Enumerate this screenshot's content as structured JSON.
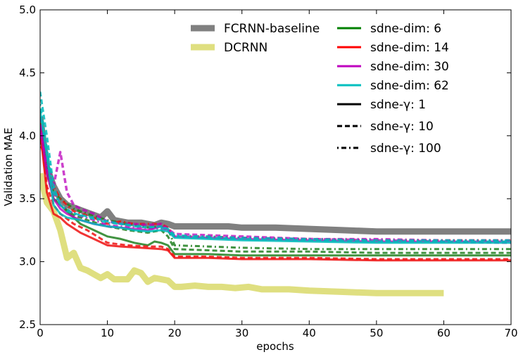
{
  "chart_data": {
    "type": "line",
    "title": "",
    "xlabel": "epochs",
    "ylabel": "Validation MAE",
    "xlim": [
      0,
      70
    ],
    "ylim": [
      2.5,
      5.0
    ],
    "x_ticks": [
      0,
      10,
      20,
      30,
      40,
      50,
      60,
      70
    ],
    "y_ticks": [
      2.5,
      3.0,
      3.5,
      4.0,
      4.5,
      5.0
    ],
    "x_tick_labels": [
      "0",
      "10",
      "20",
      "30",
      "40",
      "50",
      "60",
      "70"
    ],
    "y_tick_labels": [
      "2.5",
      "3.0",
      "3.5",
      "4.0",
      "4.5",
      "5.0"
    ],
    "grid": false,
    "legend_position": "top-center-right",
    "legend": [
      {
        "label": "FCRNN-baseline",
        "color": "#808080",
        "style": "thick-solid"
      },
      {
        "label": "DCRNN",
        "color": "#dfdf80",
        "style": "thick-solid"
      },
      {
        "label": "sdne-dim: 6",
        "color": "#008000",
        "style": "solid"
      },
      {
        "label": "sdne-dim: 14",
        "color": "#ff0000",
        "style": "solid"
      },
      {
        "label": "sdne-dim: 30",
        "color": "#bf00bf",
        "style": "solid"
      },
      {
        "label": "sdne-dim: 62",
        "color": "#00bfbf",
        "style": "solid"
      },
      {
        "label": "sdne-γ: 1",
        "color": "#000000",
        "style": "solid"
      },
      {
        "label": "sdne-γ: 10",
        "color": "#000000",
        "style": "dashed"
      },
      {
        "label": "sdne-γ: 100",
        "color": "#000000",
        "style": "dashdot"
      }
    ],
    "series": [
      {
        "name": "FCRNN-baseline",
        "color": "#808080",
        "dash": "",
        "width": 9,
        "opacity": 1,
        "x": [
          0,
          1,
          2,
          3,
          4,
          5,
          6,
          7,
          8,
          9,
          10,
          11,
          12,
          13,
          14,
          15,
          16,
          17,
          18,
          19,
          20,
          22,
          25,
          28,
          30,
          35,
          40,
          45,
          50,
          55,
          60,
          65,
          70
        ],
        "y": [
          4.15,
          3.75,
          3.6,
          3.5,
          3.45,
          3.43,
          3.41,
          3.39,
          3.37,
          3.35,
          3.4,
          3.33,
          3.32,
          3.31,
          3.31,
          3.31,
          3.3,
          3.29,
          3.31,
          3.3,
          3.28,
          3.28,
          3.28,
          3.28,
          3.27,
          3.27,
          3.26,
          3.25,
          3.24,
          3.24,
          3.24,
          3.24,
          3.24
        ]
      },
      {
        "name": "DCRNN",
        "color": "#dfdf80",
        "dash": "",
        "width": 9,
        "opacity": 1,
        "x": [
          0,
          1,
          2,
          3,
          4,
          5,
          6,
          7,
          8,
          9,
          10,
          11,
          12,
          13,
          14,
          15,
          16,
          17,
          18,
          19,
          20,
          21,
          23,
          25,
          27,
          29,
          31,
          33,
          35,
          37,
          40,
          45,
          50,
          55,
          60
        ],
        "y": [
          3.7,
          3.47,
          3.4,
          3.25,
          3.03,
          3.07,
          2.95,
          2.93,
          2.9,
          2.87,
          2.9,
          2.86,
          2.86,
          2.86,
          2.93,
          2.91,
          2.84,
          2.87,
          2.86,
          2.85,
          2.8,
          2.8,
          2.81,
          2.8,
          2.8,
          2.79,
          2.8,
          2.78,
          2.78,
          2.78,
          2.77,
          2.76,
          2.75,
          2.75,
          2.75
        ]
      },
      {
        "name": "sdne-dim: 6 / sdne-γ: 1",
        "color": "#208020",
        "dash": "",
        "width": 3,
        "opacity": 0.85,
        "x": [
          0,
          1,
          2,
          3,
          4,
          5,
          6,
          8,
          10,
          12,
          14,
          16,
          17,
          18,
          19,
          20,
          25,
          30,
          40,
          50,
          60,
          70
        ],
        "y": [
          4.1,
          3.75,
          3.5,
          3.45,
          3.4,
          3.35,
          3.3,
          3.25,
          3.2,
          3.18,
          3.15,
          3.13,
          3.16,
          3.15,
          3.13,
          3.06,
          3.06,
          3.05,
          3.05,
          3.05,
          3.05,
          3.05
        ]
      },
      {
        "name": "sdne-dim: 6 / sdne-γ: 10",
        "color": "#208020",
        "dash": "7,4",
        "width": 3,
        "opacity": 0.85,
        "x": [
          0,
          1,
          2,
          3,
          5,
          7,
          10,
          13,
          16,
          18,
          19,
          20,
          25,
          30,
          40,
          50,
          60,
          70
        ],
        "y": [
          4.05,
          3.7,
          3.5,
          3.45,
          3.37,
          3.33,
          3.28,
          3.25,
          3.23,
          3.25,
          3.2,
          3.1,
          3.09,
          3.08,
          3.08,
          3.07,
          3.07,
          3.07
        ]
      },
      {
        "name": "sdne-dim: 6 / sdne-γ: 100",
        "color": "#208020",
        "dash": "2,4,7,4",
        "width": 3,
        "opacity": 0.85,
        "x": [
          0,
          1,
          2,
          3,
          5,
          7,
          10,
          13,
          16,
          18,
          19,
          20,
          25,
          30,
          40,
          50,
          60,
          70
        ],
        "y": [
          4.0,
          3.72,
          3.55,
          3.5,
          3.42,
          3.38,
          3.33,
          3.3,
          3.27,
          3.28,
          3.26,
          3.13,
          3.12,
          3.11,
          3.1,
          3.1,
          3.1,
          3.1
        ]
      },
      {
        "name": "sdne-dim: 14 / sdne-γ: 1",
        "color": "#ee1010",
        "dash": "",
        "width": 3,
        "opacity": 0.85,
        "x": [
          0,
          1,
          2,
          3,
          4,
          6,
          8,
          10,
          12,
          15,
          18,
          19,
          20,
          25,
          30,
          40,
          50,
          60,
          70
        ],
        "y": [
          4.05,
          3.55,
          3.38,
          3.35,
          3.3,
          3.23,
          3.18,
          3.13,
          3.12,
          3.11,
          3.1,
          3.09,
          3.03,
          3.03,
          3.02,
          3.02,
          3.01,
          3.01,
          3.01
        ]
      },
      {
        "name": "sdne-dim: 14 / sdne-γ: 10",
        "color": "#ee1010",
        "dash": "7,4",
        "width": 3,
        "opacity": 0.85,
        "x": [
          0,
          1,
          2,
          3,
          5,
          7,
          10,
          13,
          16,
          18,
          19,
          20,
          25,
          30,
          40,
          50,
          60,
          70
        ],
        "y": [
          4.1,
          3.6,
          3.45,
          3.38,
          3.3,
          3.25,
          3.15,
          3.13,
          3.12,
          3.12,
          3.1,
          3.04,
          3.04,
          3.03,
          3.03,
          3.02,
          3.02,
          3.02
        ]
      },
      {
        "name": "sdne-dim: 14 / sdne-γ: 100",
        "color": "#ee1010",
        "dash": "2,4,7,4",
        "width": 3,
        "opacity": 0.85,
        "x": [
          0,
          1,
          2,
          3,
          5,
          8,
          10,
          12,
          14,
          16,
          18,
          19,
          20,
          25,
          30,
          40,
          50,
          60,
          70
        ],
        "y": [
          3.95,
          3.75,
          3.6,
          3.5,
          3.4,
          3.35,
          3.3,
          3.32,
          3.3,
          3.3,
          3.3,
          3.27,
          3.2,
          3.2,
          3.19,
          3.18,
          3.17,
          3.17,
          3.17
        ]
      },
      {
        "name": "sdne-dim: 30 / sdne-γ: 1",
        "color": "#bb00bb",
        "dash": "",
        "width": 3,
        "opacity": 0.8,
        "x": [
          0,
          1,
          2,
          3,
          4,
          6,
          8,
          10,
          12,
          14,
          16,
          18,
          19,
          20,
          25,
          30,
          40,
          50,
          60,
          70
        ],
        "y": [
          4.08,
          3.7,
          3.5,
          3.42,
          3.38,
          3.33,
          3.3,
          3.28,
          3.27,
          3.26,
          3.25,
          3.28,
          3.25,
          3.2,
          3.19,
          3.18,
          3.17,
          3.16,
          3.16,
          3.16
        ]
      },
      {
        "name": "sdne-dim: 30 / sdne-γ: 10",
        "color": "#bb00bb",
        "dash": "7,4",
        "width": 3.5,
        "opacity": 0.75,
        "x": [
          0,
          1,
          2,
          3,
          4,
          5,
          6,
          8,
          10,
          12,
          14,
          16,
          18,
          19,
          20,
          25,
          30,
          40,
          50,
          60,
          70
        ],
        "y": [
          4.15,
          3.8,
          3.6,
          3.87,
          3.55,
          3.45,
          3.42,
          3.38,
          3.32,
          3.3,
          3.3,
          3.29,
          3.3,
          3.26,
          3.22,
          3.21,
          3.2,
          3.18,
          3.17,
          3.16,
          3.15
        ]
      },
      {
        "name": "sdne-dim: 30 / sdne-γ: 100",
        "color": "#bb00bb",
        "dash": "2,4,7,4",
        "width": 3,
        "opacity": 0.8,
        "x": [
          0,
          1,
          2,
          3,
          5,
          8,
          10,
          12,
          15,
          18,
          19,
          20,
          25,
          30,
          40,
          50,
          60,
          70
        ],
        "y": [
          4.05,
          3.75,
          3.55,
          3.45,
          3.38,
          3.33,
          3.29,
          3.28,
          3.27,
          3.26,
          3.25,
          3.2,
          3.19,
          3.19,
          3.18,
          3.18,
          3.17,
          3.17
        ]
      },
      {
        "name": "sdne-dim: 62 / sdne-γ: 1",
        "color": "#00bbbb",
        "dash": "",
        "width": 3,
        "opacity": 0.85,
        "x": [
          0,
          1,
          2,
          3,
          4,
          6,
          8,
          10,
          12,
          14,
          16,
          18,
          19,
          20,
          25,
          30,
          40,
          50,
          60,
          70
        ],
        "y": [
          4.2,
          3.85,
          3.45,
          3.38,
          3.35,
          3.33,
          3.3,
          3.28,
          3.27,
          3.25,
          3.24,
          3.25,
          3.24,
          3.19,
          3.18,
          3.17,
          3.16,
          3.15,
          3.15,
          3.15
        ]
      },
      {
        "name": "sdne-dim: 62 / sdne-γ: 10",
        "color": "#00bbbb",
        "dash": "7,4",
        "width": 3,
        "opacity": 0.85,
        "x": [
          0,
          1,
          2,
          3,
          4,
          6,
          8,
          10,
          12,
          14,
          16,
          18,
          19,
          20,
          25,
          30,
          40,
          50,
          60,
          70
        ],
        "y": [
          4.35,
          4.0,
          3.6,
          3.45,
          3.4,
          3.37,
          3.35,
          3.32,
          3.3,
          3.28,
          3.27,
          3.28,
          3.26,
          3.2,
          3.19,
          3.18,
          3.17,
          3.16,
          3.16,
          3.16
        ]
      },
      {
        "name": "sdne-dim: 62 / sdne-γ: 100",
        "color": "#00bbbb",
        "dash": "2,4,7,4",
        "width": 3,
        "opacity": 0.85,
        "x": [
          0,
          1,
          2,
          3,
          5,
          8,
          10,
          12,
          15,
          18,
          19,
          20,
          25,
          30,
          40,
          50,
          60,
          70
        ],
        "y": [
          4.25,
          3.9,
          3.55,
          3.45,
          3.38,
          3.34,
          3.31,
          3.3,
          3.28,
          3.27,
          3.26,
          3.21,
          3.2,
          3.19,
          3.18,
          3.17,
          3.17,
          3.17
        ]
      }
    ]
  }
}
